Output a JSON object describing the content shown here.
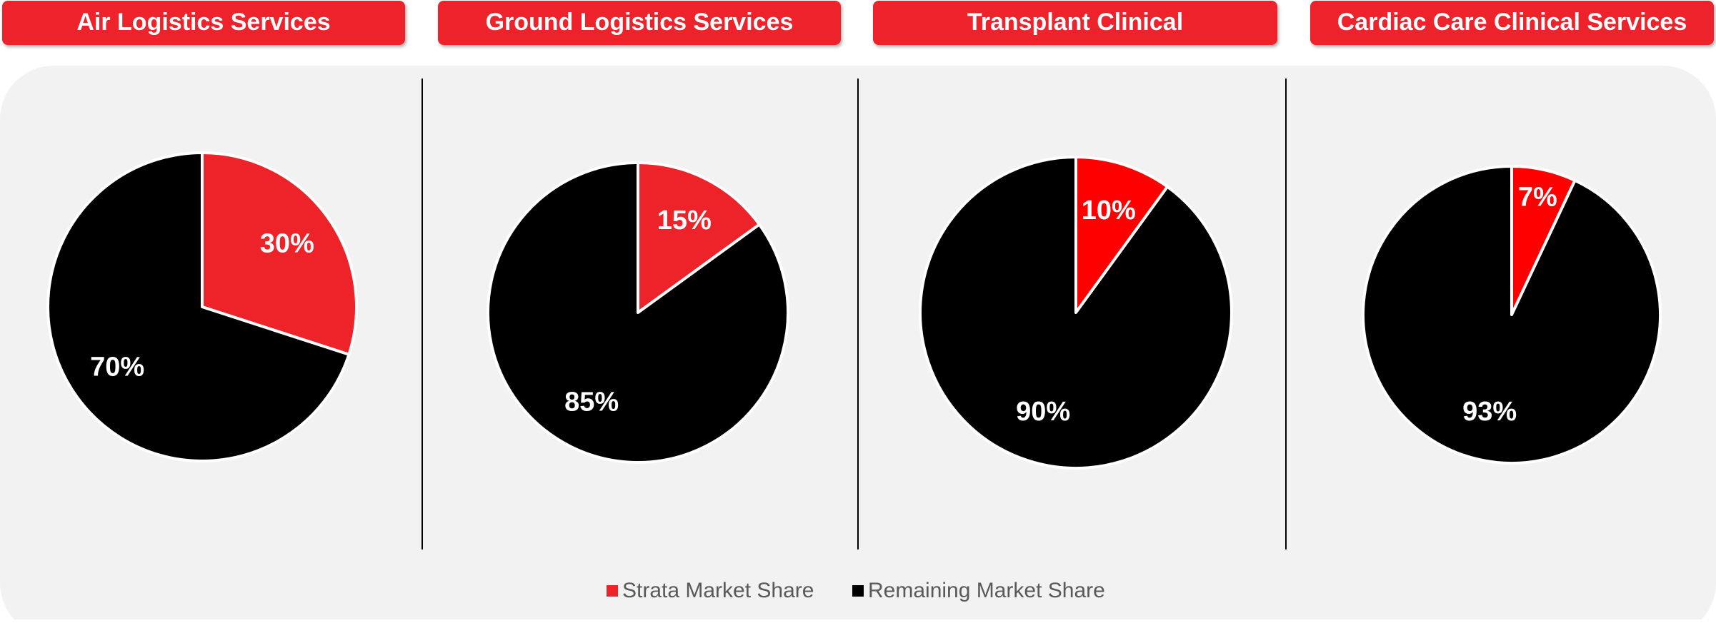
{
  "legend": {
    "labels": [
      "Strata Market Share",
      "Remaining Market Share"
    ],
    "colors": [
      "#ee2229",
      "#000000"
    ]
  },
  "chart_data": [
    {
      "type": "pie",
      "title": "Air Logistics Services",
      "values": [
        30,
        70
      ],
      "value_labels": [
        "30%",
        "70%"
      ],
      "colors": [
        "#ee2229",
        "#000000"
      ]
    },
    {
      "type": "pie",
      "title": "Ground Logistics Services",
      "values": [
        15,
        85
      ],
      "value_labels": [
        "15%",
        "85%"
      ],
      "colors": [
        "#ee2229",
        "#000000"
      ]
    },
    {
      "type": "pie",
      "title": "Transplant Clinical",
      "values": [
        10,
        90
      ],
      "value_labels": [
        "10%",
        "90%"
      ],
      "colors": [
        "#ff0000",
        "#000000"
      ]
    },
    {
      "type": "pie",
      "title": "Cardiac Care Clinical Services",
      "values": [
        7,
        93
      ],
      "value_labels": [
        "7%",
        "93%"
      ],
      "colors": [
        "#ff0000",
        "#000000"
      ]
    }
  ]
}
